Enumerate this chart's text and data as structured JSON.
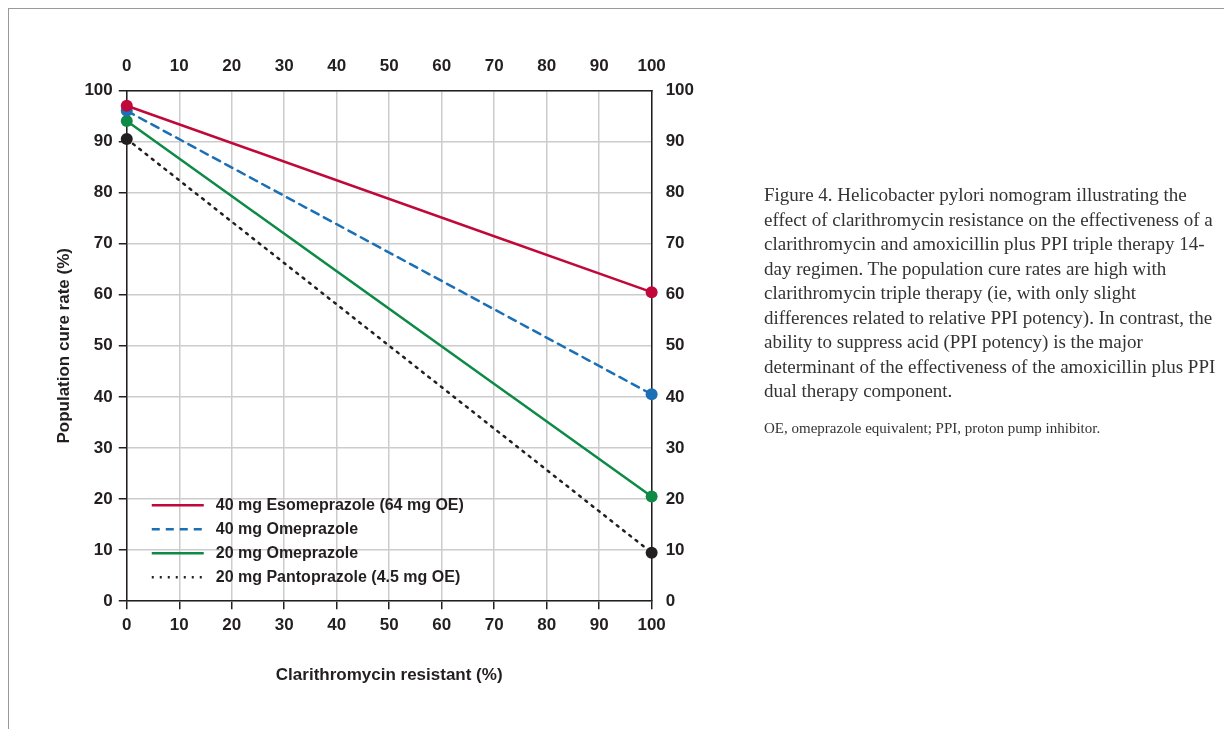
{
  "chart_data": {
    "type": "line",
    "xlabel": "Clarithromycin resistant (%)",
    "ylabel": "Population cure rate (%)",
    "x": [
      0,
      100
    ],
    "series": [
      {
        "name": "40 mg Esomeprazole (64 mg OE)",
        "color": "#c0083a",
        "values": [
          97,
          60.5
        ],
        "line_style": "solid"
      },
      {
        "name": "40 mg Omeprazole",
        "color": "#1a6fb5",
        "values": [
          96,
          40.5
        ],
        "line_style": "dashed"
      },
      {
        "name": "20 mg Omeprazole",
        "color": "#0d8a45",
        "values": [
          94,
          20.5
        ],
        "line_style": "solid"
      },
      {
        "name": "20 mg Pantoprazole (4.5 mg OE)",
        "color": "#231f20",
        "values": [
          90.5,
          9.5
        ],
        "line_style": "dotted"
      }
    ],
    "xlim": [
      0,
      100
    ],
    "xticks": [
      0,
      10,
      20,
      30,
      40,
      50,
      60,
      70,
      80,
      90,
      100
    ],
    "x2lim": [
      0,
      100
    ],
    "x2ticks": [
      0,
      10,
      20,
      30,
      40,
      50,
      60,
      70,
      80,
      90,
      100
    ],
    "ylim": [
      0,
      100
    ],
    "yticks": [
      0,
      10,
      20,
      30,
      40,
      50,
      60,
      70,
      80,
      90,
      100
    ],
    "y2lim": [
      0,
      100
    ],
    "y2ticks": [
      0,
      10,
      20,
      30,
      40,
      50,
      60,
      70,
      80,
      90,
      100
    ],
    "grid": true,
    "legend": "bottom left",
    "marker": "circle",
    "annotations": [
      "Figure 4. Helicobacter pylori nomogram illustrating the effect of clarithromycin resistance on the effectiveness of a clarithromycin and amoxicillin plus PPI triple therapy 14-day regimen. The population cure rates are high with clarithromycin triple therapy (ie, with only slight differences related to relative PPI potency). In contrast, the ability to suppress acid (PPI potency) is the major determinant of the effectiveness of the amoxicillin plus PPI dual therapy component.",
      "OE, omeprazole equivalent; PPI, proton pump inhibitor."
    ]
  }
}
